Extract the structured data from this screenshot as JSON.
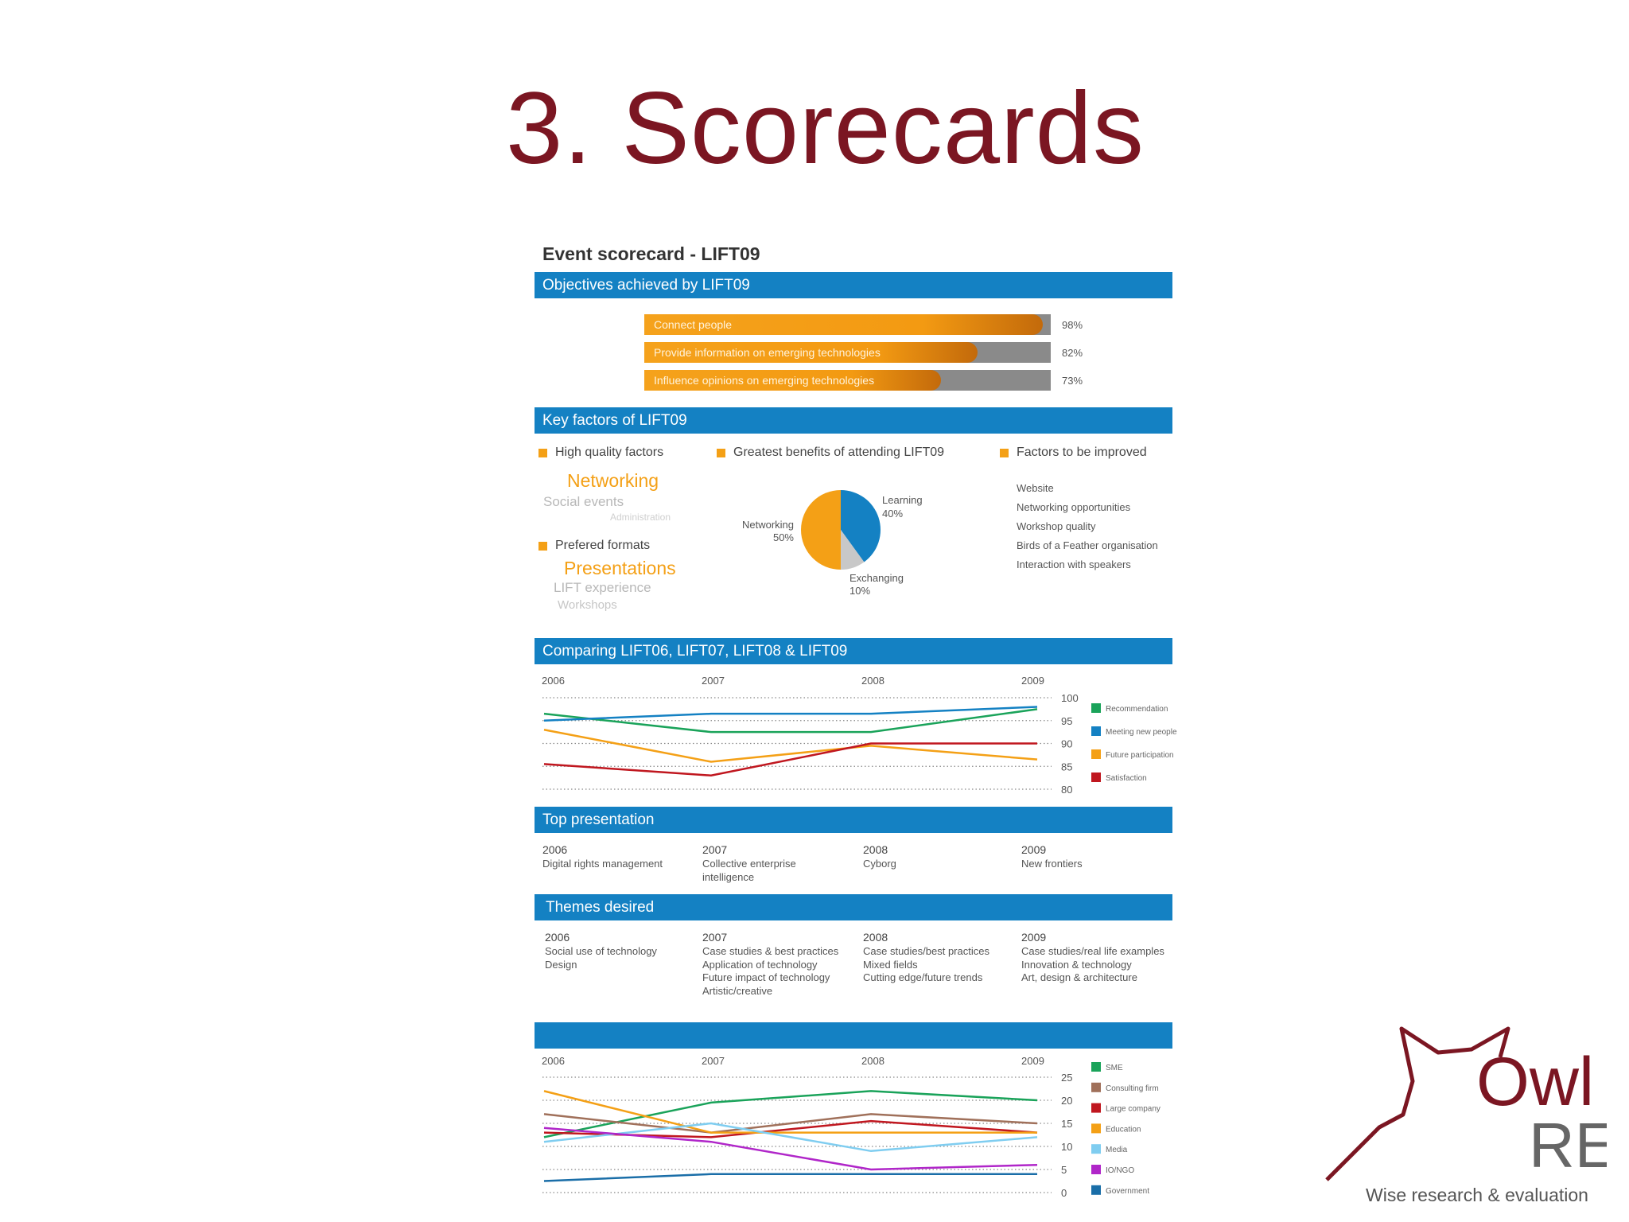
{
  "slide_title": "3. Scorecards",
  "card_title": "Event scorecard - LIFT09",
  "objectives": {
    "header": "Objectives achieved by LIFT09",
    "items": [
      {
        "label": "Connect people",
        "percent_text": "98%",
        "value": 0.98
      },
      {
        "label": "Provide information on emerging technologies",
        "percent_text": "82%",
        "value": 0.82
      },
      {
        "label": "Influence opinions on emerging technologies",
        "percent_text": "73%",
        "value": 0.73
      }
    ]
  },
  "key_factors": {
    "header": "Key factors of LIFT09",
    "high_quality": {
      "heading": "High quality factors",
      "top": "Networking",
      "mid": "Social events",
      "low": "Administration"
    },
    "formats": {
      "heading": "Prefered formats",
      "top": "Presentations",
      "mid": "LIFT experience",
      "low": "Workshops"
    },
    "benefits": {
      "heading": "Greatest benefits of attending LIFT09",
      "slices": [
        {
          "name": "Learning",
          "value": 40,
          "label": "40%",
          "color": "#1481c3"
        },
        {
          "name": "Exchanging",
          "value": 10,
          "label": "10%",
          "color": "#c8c8c8"
        },
        {
          "name": "Networking",
          "value": 50,
          "label": "50%",
          "color": "#f4a016"
        }
      ]
    },
    "improve": {
      "heading": "Factors to be improved",
      "items": [
        "Website",
        "Networking opportunities",
        "Workshop quality",
        "Birds of a Feather organisation",
        "Interaction with speakers"
      ]
    }
  },
  "comparing": {
    "header": "Comparing LIFT06, LIFT07, LIFT08 & LIFT09"
  },
  "top_presentation": {
    "header": "Top presentation",
    "columns": [
      {
        "year": "2006",
        "lines": [
          "Digital rights management"
        ]
      },
      {
        "year": "2007",
        "lines": [
          "Collective enterprise",
          "intelligence"
        ]
      },
      {
        "year": "2008",
        "lines": [
          "Cyborg"
        ]
      },
      {
        "year": "2009",
        "lines": [
          "New frontiers"
        ]
      }
    ]
  },
  "themes": {
    "header": "Themes desired",
    "columns": [
      {
        "year": "2006",
        "lines": [
          "Social use of technology",
          "Design"
        ]
      },
      {
        "year": "2007",
        "lines": [
          "Case studies & best practices",
          "Application of technology",
          "Future impact of technology",
          "Artistic/creative"
        ]
      },
      {
        "year": "2008",
        "lines": [
          "Case studies/best practices",
          "Mixed fields",
          "Cutting edge/future trends"
        ]
      },
      {
        "year": "2009",
        "lines": [
          "Case studies/real life examples",
          "Innovation & technology",
          "Art, design & architecture"
        ]
      }
    ]
  },
  "chart_data": [
    {
      "type": "line",
      "x": [
        "2006",
        "2007",
        "2008",
        "2009"
      ],
      "ylim": [
        80,
        100
      ],
      "yticks": [
        100,
        95,
        90,
        85,
        80
      ],
      "grid": true,
      "legend": "right",
      "series": [
        {
          "name": "Recommendation",
          "color": "#1aa35a",
          "values": [
            96.5,
            92.5,
            92.5,
            97.5
          ]
        },
        {
          "name": "Meeting new people",
          "color": "#1481c3",
          "values": [
            95,
            96.5,
            96.5,
            98
          ]
        },
        {
          "name": "Future participation",
          "color": "#f4a016",
          "values": [
            93,
            86,
            89.5,
            86.5
          ]
        },
        {
          "name": "Satisfaction",
          "color": "#c0171f",
          "values": [
            85.5,
            83,
            90,
            90
          ]
        }
      ]
    },
    {
      "type": "line",
      "x": [
        "2006",
        "2007",
        "2008",
        "2009"
      ],
      "ylim": [
        0,
        25
      ],
      "yticks": [
        25,
        20,
        15,
        10,
        5,
        0
      ],
      "grid": true,
      "legend": "right",
      "series": [
        {
          "name": "SME",
          "color": "#1aa35a",
          "values": [
            12,
            19.5,
            22,
            20
          ]
        },
        {
          "name": "Consulting firm",
          "color": "#a0705a",
          "values": [
            17,
            13,
            17,
            15
          ]
        },
        {
          "name": "Large company",
          "color": "#c0171f",
          "values": [
            13,
            12,
            15.5,
            13
          ]
        },
        {
          "name": "Education",
          "color": "#f4a016",
          "values": [
            22,
            13,
            13,
            13
          ]
        },
        {
          "name": "Media",
          "color": "#7fcdf0",
          "values": [
            11,
            15,
            9,
            12
          ]
        },
        {
          "name": "IO/NGO",
          "color": "#b026c9",
          "values": [
            14,
            11,
            5,
            6
          ]
        },
        {
          "name": "Government",
          "color": "#1a6ea8",
          "values": [
            2.5,
            4,
            4,
            4
          ]
        }
      ]
    }
  ],
  "logo": {
    "word1": "Owl",
    "word2": "RE",
    "tagline": "Wise research & evaluation",
    "color": "#7b1622"
  }
}
